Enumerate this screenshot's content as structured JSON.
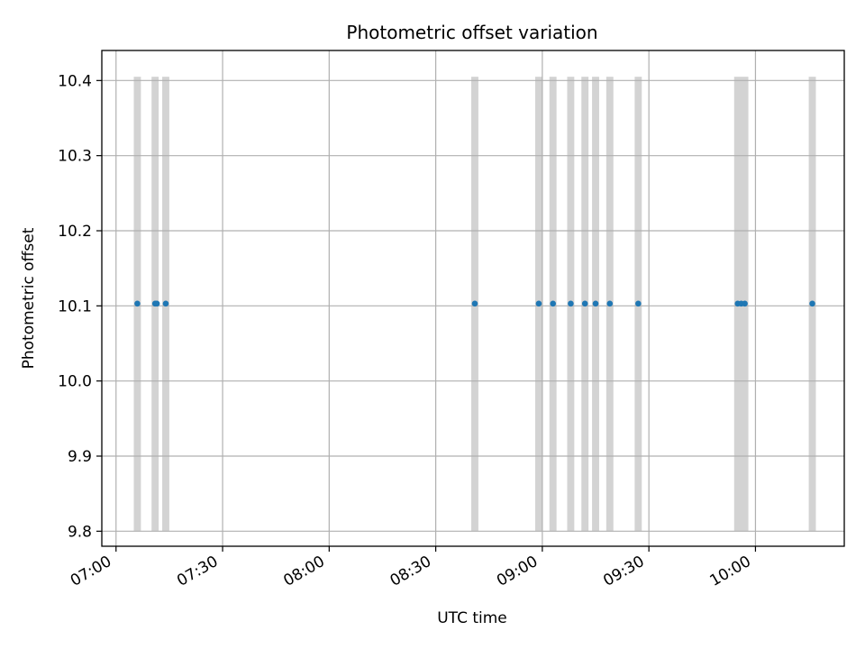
{
  "chart_data": {
    "type": "scatter",
    "title": "Photometric offset variation",
    "xlabel": "UTC time",
    "ylabel": "Photometric offset",
    "x_ticks": [
      "07:00",
      "07:30",
      "08:00",
      "08:30",
      "09:00",
      "09:30",
      "10:00"
    ],
    "y_ticks": [
      "9.8",
      "9.9",
      "10.0",
      "10.1",
      "10.2",
      "10.3",
      "10.4"
    ],
    "xlim": [
      "06:56",
      "10:25"
    ],
    "ylim": [
      9.78,
      10.44
    ],
    "grid": true,
    "colors": {
      "points": "#1f77b4",
      "spans": "#d3d3d3",
      "grid": "#b0b0b0"
    },
    "span_y_range": [
      9.8,
      10.405
    ],
    "points": {
      "x": [
        "07:06",
        "07:11",
        "07:11:30",
        "07:14",
        "08:41",
        "08:59",
        "09:03",
        "09:08",
        "09:12",
        "09:15",
        "09:19",
        "09:27",
        "09:55",
        "09:56",
        "09:57",
        "10:16"
      ],
      "y": [
        10.103,
        10.103,
        10.103,
        10.103,
        10.103,
        10.103,
        10.103,
        10.103,
        10.103,
        10.103,
        10.103,
        10.103,
        10.103,
        10.103,
        10.103,
        10.103
      ]
    },
    "spans": [
      [
        "07:05",
        "07:07"
      ],
      [
        "07:10",
        "07:12"
      ],
      [
        "07:13",
        "07:15"
      ],
      [
        "08:40",
        "08:42"
      ],
      [
        "08:58",
        "09:00"
      ],
      [
        "09:02",
        "09:04"
      ],
      [
        "09:07",
        "09:09"
      ],
      [
        "09:11",
        "09:13"
      ],
      [
        "09:14",
        "09:16"
      ],
      [
        "09:18",
        "09:20"
      ],
      [
        "09:26",
        "09:28"
      ],
      [
        "09:54",
        "09:58"
      ],
      [
        "10:15",
        "10:17"
      ]
    ]
  }
}
